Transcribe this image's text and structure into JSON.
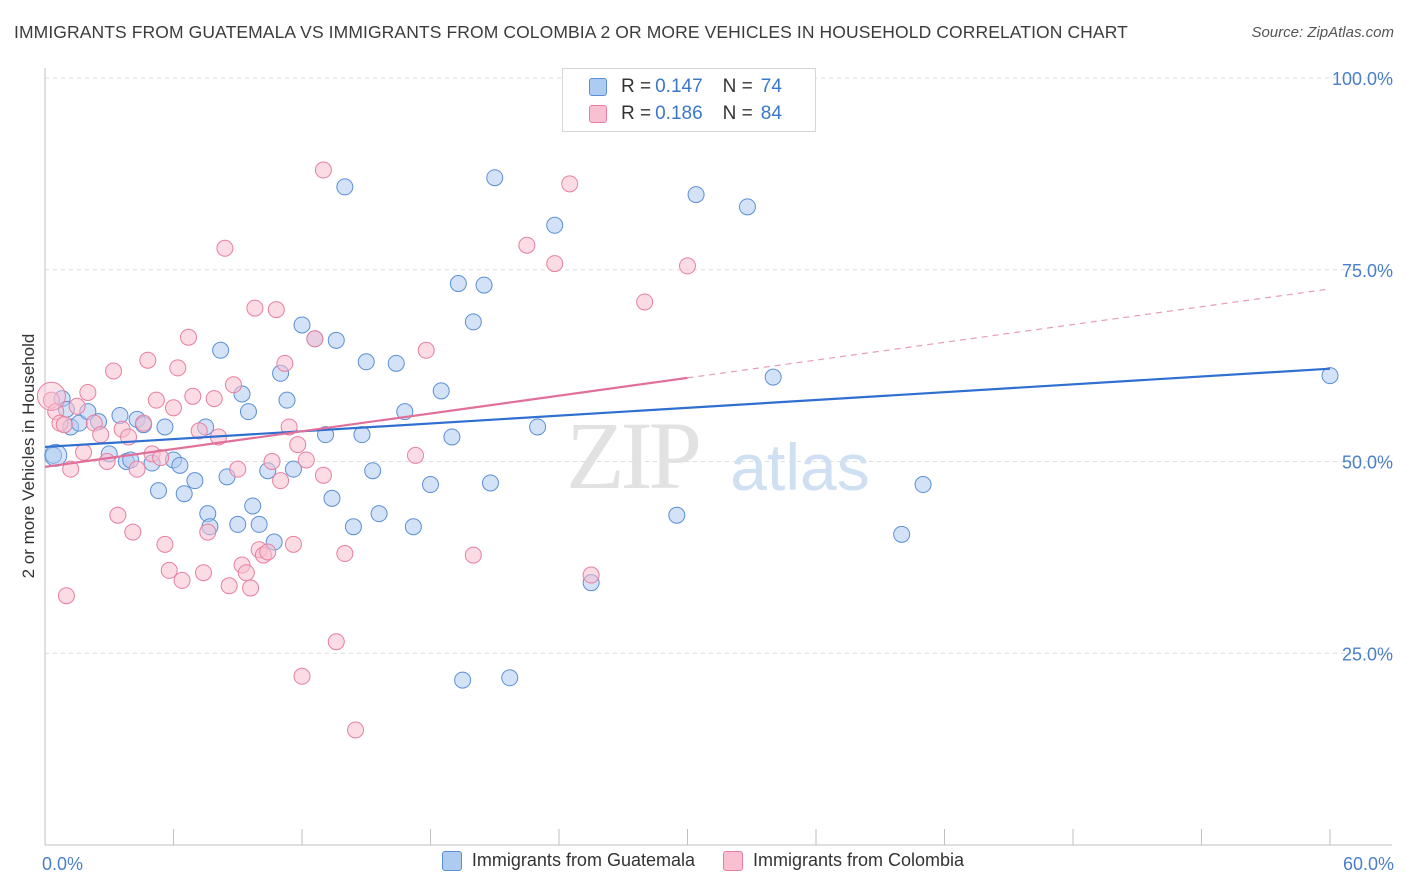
{
  "title": "IMMIGRANTS FROM GUATEMALA VS IMMIGRANTS FROM COLOMBIA 2 OR MORE VEHICLES IN HOUSEHOLD CORRELATION CHART",
  "source": "Source: ZipAtlas.com",
  "watermark": {
    "zip": "ZIP",
    "atlas": "atlas"
  },
  "legend_top": {
    "rows": [
      {
        "r_label": "R =",
        "r_value": "0.147",
        "n_label": "N =",
        "n_value": "74",
        "color": "#aecbf0",
        "border": "#5b8fd6"
      },
      {
        "r_label": "R =",
        "r_value": "0.186",
        "n_label": "N =",
        "n_value": "84",
        "color": "#f8c0d0",
        "border": "#e87fa0"
      }
    ]
  },
  "chart_data": {
    "type": "scatter",
    "xlabel": "",
    "ylabel": "2 or more Vehicles in Household",
    "xlim": [
      0,
      60
    ],
    "ylim": [
      0,
      100
    ],
    "x_tick_labels": [
      {
        "value": 0,
        "label": "0.0%"
      },
      {
        "value": 60,
        "label": "60.0%"
      }
    ],
    "y_tick_labels": [
      {
        "value": 25,
        "label": "25.0%"
      },
      {
        "value": 50,
        "label": "50.0%"
      },
      {
        "value": 75,
        "label": "75.0%"
      },
      {
        "value": 100,
        "label": "100.0%"
      }
    ],
    "grid": "horizontal dashed",
    "series": [
      {
        "name": "Immigrants from Guatemala",
        "color": "#aecbf0",
        "stroke": "#5b8fd6",
        "line_color": "#2e6fd0",
        "trend": {
          "x0": 0,
          "y0": 51.9,
          "x1": 60,
          "y1": 62.1,
          "dashed_from": null
        },
        "points": [
          [
            0.4,
            50.8
          ],
          [
            0.8,
            58.2
          ],
          [
            1.0,
            56.8
          ],
          [
            1.2,
            54.5
          ],
          [
            1.6,
            55.0
          ],
          [
            2.0,
            56.5
          ],
          [
            2.5,
            55.2
          ],
          [
            3.0,
            51.0
          ],
          [
            3.5,
            56.0
          ],
          [
            3.8,
            50.0
          ],
          [
            4.0,
            50.2
          ],
          [
            4.3,
            55.5
          ],
          [
            4.6,
            54.8
          ],
          [
            5.0,
            49.8
          ],
          [
            5.3,
            46.2
          ],
          [
            5.6,
            54.5
          ],
          [
            6.0,
            50.2
          ],
          [
            6.3,
            49.5
          ],
          [
            6.5,
            45.8
          ],
          [
            7.0,
            47.5
          ],
          [
            7.5,
            54.5
          ],
          [
            7.6,
            43.2
          ],
          [
            7.7,
            41.5
          ],
          [
            8.2,
            64.5
          ],
          [
            8.5,
            48.0
          ],
          [
            9.0,
            41.8
          ],
          [
            9.2,
            58.8
          ],
          [
            9.5,
            56.5
          ],
          [
            9.7,
            44.2
          ],
          [
            10.0,
            41.8
          ],
          [
            10.4,
            48.8
          ],
          [
            10.7,
            39.5
          ],
          [
            11.0,
            61.5
          ],
          [
            11.3,
            58.0
          ],
          [
            11.6,
            49.0
          ],
          [
            12.0,
            67.8
          ],
          [
            12.6,
            66.0
          ],
          [
            13.1,
            53.5
          ],
          [
            13.4,
            45.2
          ],
          [
            13.6,
            65.8
          ],
          [
            14.0,
            85.8
          ],
          [
            14.4,
            41.5
          ],
          [
            14.8,
            53.5
          ],
          [
            15.0,
            63.0
          ],
          [
            15.3,
            48.8
          ],
          [
            15.6,
            43.2
          ],
          [
            16.4,
            62.8
          ],
          [
            16.8,
            56.5
          ],
          [
            17.2,
            41.5
          ],
          [
            18.0,
            47.0
          ],
          [
            18.5,
            59.2
          ],
          [
            19.0,
            53.2
          ],
          [
            19.3,
            73.2
          ],
          [
            19.5,
            21.5
          ],
          [
            20.0,
            68.2
          ],
          [
            20.5,
            73.0
          ],
          [
            20.8,
            47.2
          ],
          [
            21.0,
            87.0
          ],
          [
            21.7,
            21.8
          ],
          [
            23.0,
            54.5
          ],
          [
            23.8,
            80.8
          ],
          [
            25.5,
            34.2
          ],
          [
            29.5,
            43.0
          ],
          [
            30.4,
            84.8
          ],
          [
            32.8,
            83.2
          ],
          [
            34.0,
            61.0
          ],
          [
            40.0,
            40.5
          ],
          [
            41.0,
            47.0
          ],
          [
            60.0,
            61.2
          ]
        ]
      },
      {
        "name": "Immigrants from Colombia",
        "color": "#f8c0d0",
        "stroke": "#e87fa0",
        "line_color": "#e0709a",
        "trend": {
          "x0": 0,
          "y0": 49.3,
          "x1": 60,
          "y1": 72.5,
          "dashed_from": 30
        },
        "points": [
          [
            0.3,
            58.0
          ],
          [
            0.5,
            56.5
          ],
          [
            0.7,
            55.0
          ],
          [
            0.9,
            54.8
          ],
          [
            1.0,
            32.5
          ],
          [
            1.2,
            49.0
          ],
          [
            1.5,
            57.2
          ],
          [
            1.8,
            51.2
          ],
          [
            2.0,
            59.0
          ],
          [
            2.3,
            55.0
          ],
          [
            2.6,
            53.5
          ],
          [
            2.9,
            50.0
          ],
          [
            3.2,
            61.8
          ],
          [
            3.4,
            43.0
          ],
          [
            3.6,
            54.2
          ],
          [
            3.9,
            53.2
          ],
          [
            4.1,
            40.8
          ],
          [
            4.3,
            49.0
          ],
          [
            4.6,
            55.0
          ],
          [
            4.8,
            63.2
          ],
          [
            5.0,
            51.0
          ],
          [
            5.2,
            58.0
          ],
          [
            5.4,
            50.5
          ],
          [
            5.6,
            39.2
          ],
          [
            5.8,
            35.8
          ],
          [
            6.0,
            57.0
          ],
          [
            6.2,
            62.2
          ],
          [
            6.4,
            34.5
          ],
          [
            6.7,
            66.2
          ],
          [
            6.9,
            58.5
          ],
          [
            7.2,
            54.0
          ],
          [
            7.4,
            35.5
          ],
          [
            7.6,
            40.8
          ],
          [
            7.9,
            58.2
          ],
          [
            8.1,
            53.2
          ],
          [
            8.4,
            77.8
          ],
          [
            8.6,
            33.8
          ],
          [
            8.8,
            60.0
          ],
          [
            9.0,
            49.0
          ],
          [
            9.2,
            36.5
          ],
          [
            9.4,
            35.5
          ],
          [
            9.6,
            33.5
          ],
          [
            9.8,
            70.0
          ],
          [
            10.0,
            38.5
          ],
          [
            10.2,
            37.8
          ],
          [
            10.4,
            38.2
          ],
          [
            10.6,
            50.0
          ],
          [
            10.8,
            69.8
          ],
          [
            11.0,
            47.5
          ],
          [
            11.2,
            62.8
          ],
          [
            11.4,
            54.5
          ],
          [
            11.6,
            39.2
          ],
          [
            11.8,
            52.2
          ],
          [
            12.0,
            22.0
          ],
          [
            12.2,
            50.2
          ],
          [
            12.6,
            66.0
          ],
          [
            13.0,
            48.2
          ],
          [
            13.6,
            26.5
          ],
          [
            14.0,
            38.0
          ],
          [
            13.0,
            88.0
          ],
          [
            17.3,
            50.8
          ],
          [
            17.8,
            64.5
          ],
          [
            20.0,
            37.8
          ],
          [
            22.5,
            78.2
          ],
          [
            23.8,
            75.8
          ],
          [
            24.5,
            86.2
          ],
          [
            25.5,
            35.2
          ],
          [
            28.0,
            70.8
          ],
          [
            30.0,
            75.5
          ],
          [
            14.5,
            15.0
          ]
        ]
      }
    ]
  },
  "legend_bottom": {
    "items": [
      {
        "label": "Immigrants from Guatemala",
        "color": "#aecbf0",
        "border": "#5b8fd6"
      },
      {
        "label": "Immigrants from Colombia",
        "color": "#f8c0d0",
        "border": "#e87fa0"
      }
    ]
  }
}
